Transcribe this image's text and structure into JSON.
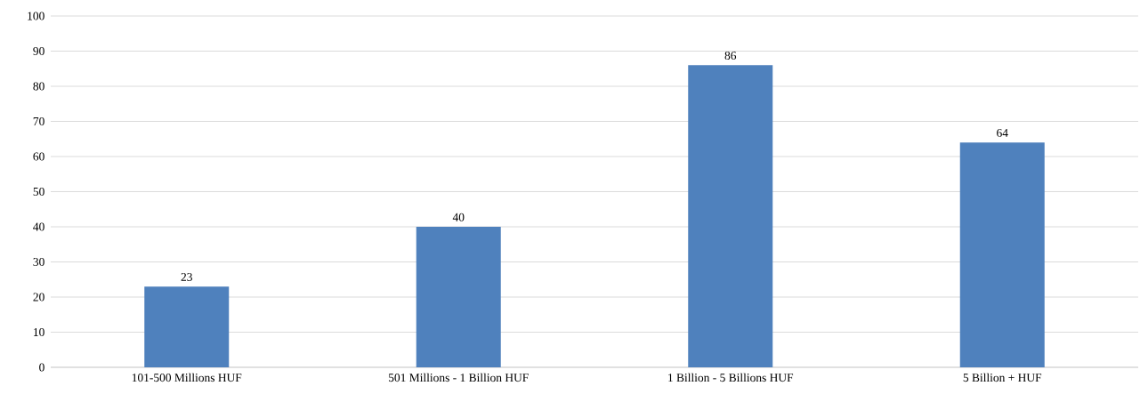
{
  "chart_data": {
    "type": "bar",
    "categories": [
      "101-500 Millions HUF",
      "501 Millions - 1 Billion HUF",
      "1 Billion - 5 Billions HUF",
      "5 Billion + HUF"
    ],
    "values": [
      23,
      40,
      86,
      64
    ],
    "color": "#4f81bd",
    "ylim": [
      0,
      100
    ],
    "yticks": [
      0,
      10,
      20,
      30,
      40,
      50,
      60,
      70,
      80,
      90,
      100
    ],
    "grid": "y",
    "data_labels": true
  }
}
